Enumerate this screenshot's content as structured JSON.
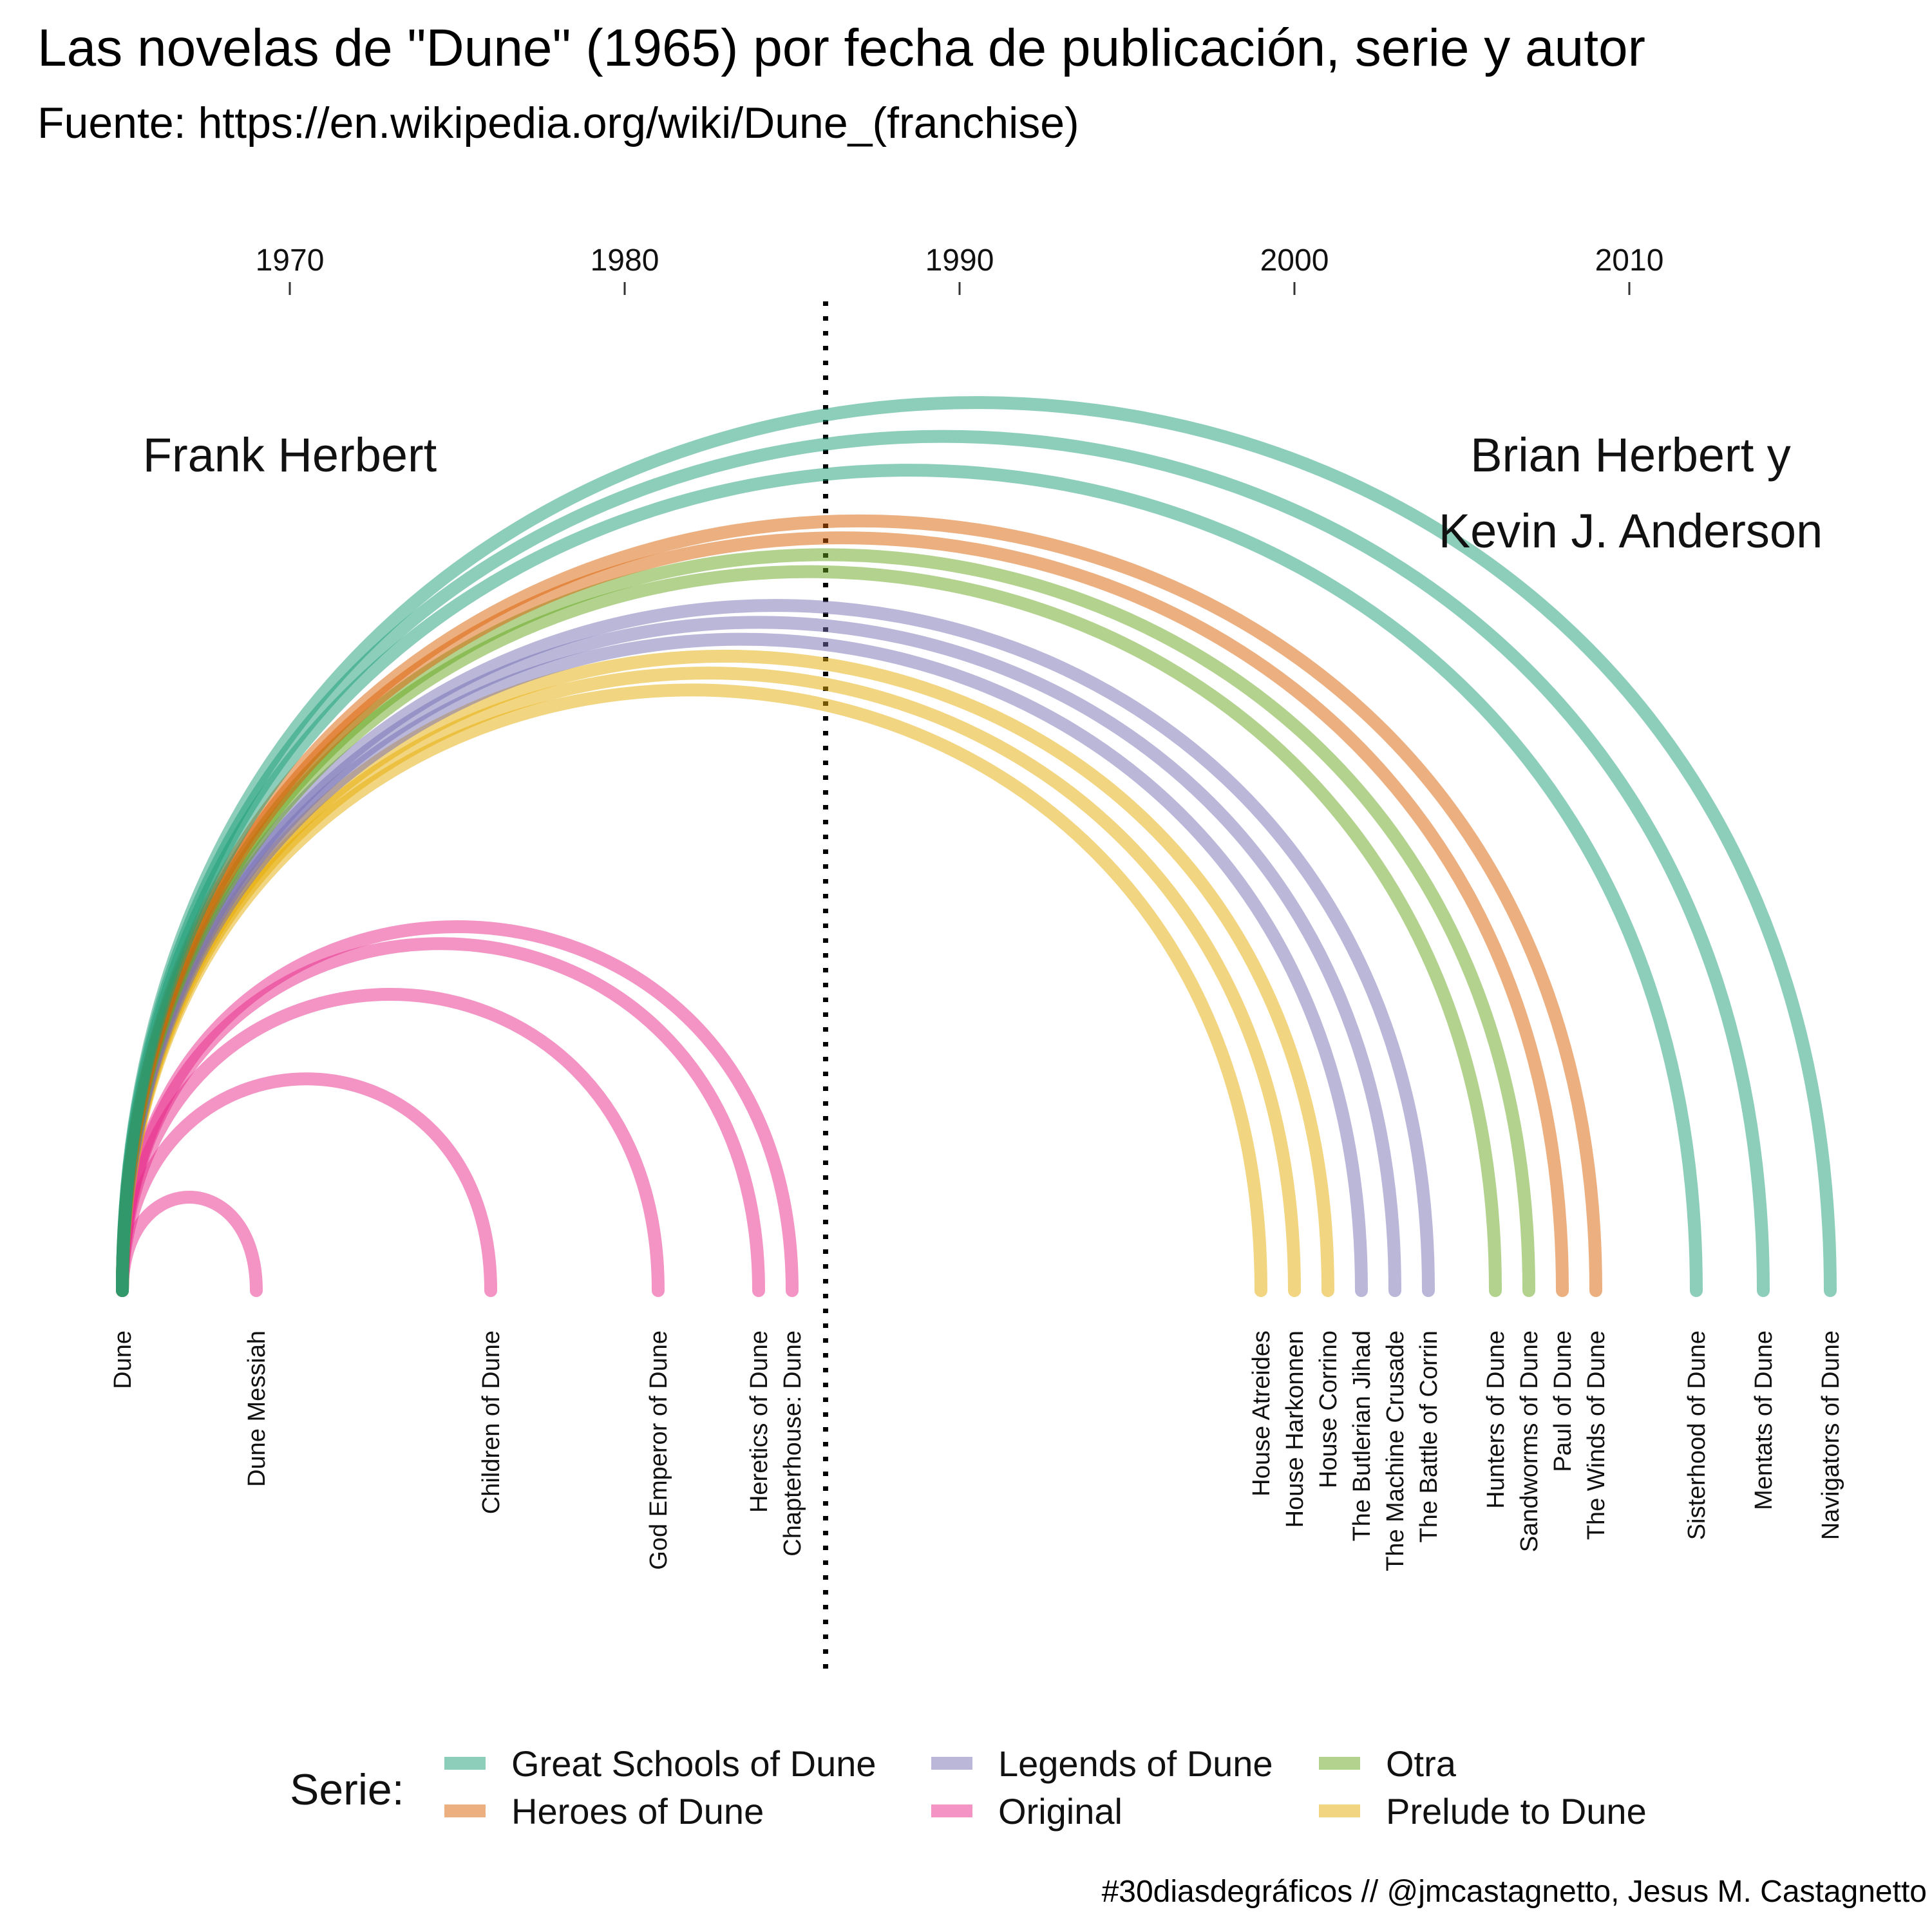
{
  "title": "Las novelas de \"Dune\" (1965) por fecha de publicación, serie y autor",
  "subtitle": "Fuente: https://en.wikipedia.org/wiki/Dune_(franchise)",
  "caption": "#30diasdegráficos // @jmcastagnetto, Jesus M. Castagnetto",
  "chart_data": {
    "type": "arc",
    "origin": {
      "title": "Dune",
      "year": 1965
    },
    "x_axis": {
      "ticks": [
        1970,
        1980,
        1990,
        2000,
        2010
      ],
      "range": [
        1963,
        2018
      ],
      "position": "top"
    },
    "divider_year": 1986,
    "authors": [
      {
        "name": "Frank Herbert",
        "lines": [
          "Frank Herbert"
        ]
      },
      {
        "name": "Brian Herbert y Kevin J. Anderson",
        "lines": [
          "Brian Herbert y",
          "Kevin J. Anderson"
        ]
      }
    ],
    "books": [
      {
        "title": "Dune Messiah",
        "year": 1969,
        "series": "Original"
      },
      {
        "title": "Children of Dune",
        "year": 1976,
        "series": "Original"
      },
      {
        "title": "God Emperor of Dune",
        "year": 1981,
        "series": "Original"
      },
      {
        "title": "Heretics of Dune",
        "year": 1984,
        "series": "Original"
      },
      {
        "title": "Chapterhouse: Dune",
        "year": 1985,
        "series": "Original"
      },
      {
        "title": "House Atreides",
        "year": 1999,
        "series": "Prelude to Dune"
      },
      {
        "title": "House Harkonnen",
        "year": 2000,
        "series": "Prelude to Dune"
      },
      {
        "title": "House Corrino",
        "year": 2001,
        "series": "Prelude to Dune"
      },
      {
        "title": "The Butlerian Jihad",
        "year": 2002,
        "series": "Legends of Dune"
      },
      {
        "title": "The Machine Crusade",
        "year": 2003,
        "series": "Legends of Dune"
      },
      {
        "title": "The Battle of Corrin",
        "year": 2004,
        "series": "Legends of Dune"
      },
      {
        "title": "Hunters of Dune",
        "year": 2006,
        "series": "Otra"
      },
      {
        "title": "Sandworms of Dune",
        "year": 2007,
        "series": "Otra"
      },
      {
        "title": "Paul of Dune",
        "year": 2008,
        "series": "Heroes of Dune"
      },
      {
        "title": "The Winds of Dune",
        "year": 2009,
        "series": "Heroes of Dune"
      },
      {
        "title": "Sisterhood of Dune",
        "year": 2012,
        "series": "Great Schools of Dune"
      },
      {
        "title": "Mentats of Dune",
        "year": 2014,
        "series": "Great Schools of Dune"
      },
      {
        "title": "Navigators of Dune",
        "year": 2016,
        "series": "Great Schools of Dune"
      }
    ],
    "legend": {
      "title": "Serie:",
      "placement": "bottom",
      "entries": [
        {
          "name": "Great Schools of Dune",
          "color": "#1b9e77"
        },
        {
          "name": "Heroes of Dune",
          "color": "#d95f02"
        },
        {
          "name": "Legends of Dune",
          "color": "#7570b3"
        },
        {
          "name": "Original",
          "color": "#e7298a"
        },
        {
          "name": "Otra",
          "color": "#66a61e"
        },
        {
          "name": "Prelude to Dune",
          "color": "#e6ab02"
        }
      ]
    }
  }
}
